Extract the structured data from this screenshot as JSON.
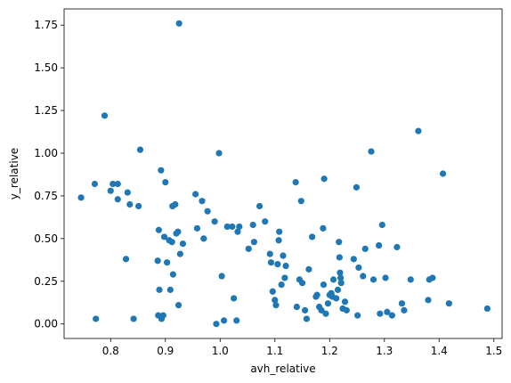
{
  "chart_data": {
    "type": "scatter",
    "title": "",
    "xlabel": "avh_relative",
    "ylabel": "y_relative",
    "xlim": [
      0.715,
      1.515
    ],
    "ylim": [
      -0.085,
      1.845
    ],
    "xticks": [
      0.8,
      0.9,
      1.0,
      1.1,
      1.2,
      1.3,
      1.4,
      1.5
    ],
    "xtick_labels": [
      "0.8",
      "0.9",
      "1.0",
      "1.1",
      "1.2",
      "1.3",
      "1.4",
      "1.5"
    ],
    "yticks": [
      0.0,
      0.25,
      0.5,
      0.75,
      1.0,
      1.25,
      1.5,
      1.75
    ],
    "ytick_labels": [
      "0.00",
      "0.25",
      "0.50",
      "0.75",
      "1.00",
      "1.25",
      "1.50",
      "1.75"
    ],
    "grid": false,
    "marker_color": "#1f77b4",
    "points": [
      [
        0.746,
        0.74
      ],
      [
        0.771,
        0.82
      ],
      [
        0.773,
        0.03
      ],
      [
        0.789,
        1.22
      ],
      [
        0.8,
        0.78
      ],
      [
        0.804,
        0.82
      ],
      [
        0.813,
        0.82
      ],
      [
        0.813,
        0.73
      ],
      [
        0.828,
        0.38
      ],
      [
        0.831,
        0.77
      ],
      [
        0.835,
        0.7
      ],
      [
        0.842,
        0.03
      ],
      [
        0.851,
        0.69
      ],
      [
        0.854,
        1.02
      ],
      [
        0.886,
        0.37
      ],
      [
        0.888,
        0.55
      ],
      [
        0.887,
        0.05
      ],
      [
        0.889,
        0.2
      ],
      [
        0.892,
        0.9
      ],
      [
        0.893,
        0.03
      ],
      [
        0.896,
        0.05
      ],
      [
        0.898,
        0.51
      ],
      [
        0.9,
        0.83
      ],
      [
        0.903,
        0.36
      ],
      [
        0.907,
        0.49
      ],
      [
        0.909,
        0.2
      ],
      [
        0.912,
        0.48
      ],
      [
        0.913,
        0.69
      ],
      [
        0.914,
        0.29
      ],
      [
        0.918,
        0.7
      ],
      [
        0.92,
        0.53
      ],
      [
        0.923,
        0.54
      ],
      [
        0.925,
        1.76
      ],
      [
        0.924,
        0.11
      ],
      [
        0.927,
        0.41
      ],
      [
        0.932,
        0.47
      ],
      [
        0.955,
        0.76
      ],
      [
        0.958,
        0.56
      ],
      [
        0.967,
        0.72
      ],
      [
        0.97,
        0.5
      ],
      [
        0.977,
        0.66
      ],
      [
        0.99,
        0.6
      ],
      [
        0.993,
        0.0
      ],
      [
        0.998,
        1.0
      ],
      [
        1.003,
        0.28
      ],
      [
        1.007,
        0.02
      ],
      [
        1.013,
        0.57
      ],
      [
        1.022,
        0.57
      ],
      [
        1.025,
        0.15
      ],
      [
        1.03,
        0.02
      ],
      [
        1.032,
        0.54
      ],
      [
        1.035,
        0.57
      ],
      [
        1.052,
        0.44
      ],
      [
        1.06,
        0.58
      ],
      [
        1.062,
        0.48
      ],
      [
        1.072,
        0.69
      ],
      [
        1.082,
        0.6
      ],
      [
        1.091,
        0.41
      ],
      [
        1.093,
        0.36
      ],
      [
        1.096,
        0.19
      ],
      [
        1.1,
        0.14
      ],
      [
        1.102,
        0.11
      ],
      [
        1.105,
        0.35
      ],
      [
        1.107,
        0.49
      ],
      [
        1.108,
        0.54
      ],
      [
        1.112,
        0.23
      ],
      [
        1.115,
        0.4
      ],
      [
        1.118,
        0.27
      ],
      [
        1.12,
        0.34
      ],
      [
        1.138,
        0.83
      ],
      [
        1.14,
        0.1
      ],
      [
        1.145,
        0.26
      ],
      [
        1.148,
        0.72
      ],
      [
        1.15,
        0.24
      ],
      [
        1.155,
        0.08
      ],
      [
        1.158,
        0.03
      ],
      [
        1.162,
        0.32
      ],
      [
        1.168,
        0.51
      ],
      [
        1.175,
        0.16
      ],
      [
        1.177,
        0.17
      ],
      [
        1.181,
        0.1
      ],
      [
        1.185,
        0.08
      ],
      [
        1.188,
        0.56
      ],
      [
        1.189,
        0.23
      ],
      [
        1.19,
        0.85
      ],
      [
        1.193,
        0.06
      ],
      [
        1.197,
        0.12
      ],
      [
        1.2,
        0.17
      ],
      [
        1.203,
        0.18
      ],
      [
        1.205,
        0.16
      ],
      [
        1.207,
        0.26
      ],
      [
        1.212,
        0.15
      ],
      [
        1.215,
        0.2
      ],
      [
        1.217,
        0.48
      ],
      [
        1.218,
        0.39
      ],
      [
        1.219,
        0.3
      ],
      [
        1.22,
        0.27
      ],
      [
        1.221,
        0.24
      ],
      [
        1.224,
        0.09
      ],
      [
        1.228,
        0.13
      ],
      [
        1.231,
        0.08
      ],
      [
        1.244,
        0.38
      ],
      [
        1.249,
        0.8
      ],
      [
        1.251,
        0.05
      ],
      [
        1.253,
        0.33
      ],
      [
        1.261,
        0.28
      ],
      [
        1.265,
        0.44
      ],
      [
        1.276,
        1.01
      ],
      [
        1.28,
        0.26
      ],
      [
        1.29,
        0.46
      ],
      [
        1.292,
        0.06
      ],
      [
        1.296,
        0.58
      ],
      [
        1.302,
        0.27
      ],
      [
        1.305,
        0.07
      ],
      [
        1.314,
        0.05
      ],
      [
        1.323,
        0.45
      ],
      [
        1.332,
        0.12
      ],
      [
        1.336,
        0.08
      ],
      [
        1.348,
        0.26
      ],
      [
        1.362,
        1.13
      ],
      [
        1.38,
        0.14
      ],
      [
        1.382,
        0.26
      ],
      [
        1.388,
        0.27
      ],
      [
        1.407,
        0.88
      ],
      [
        1.418,
        0.12
      ],
      [
        1.488,
        0.09
      ]
    ]
  }
}
